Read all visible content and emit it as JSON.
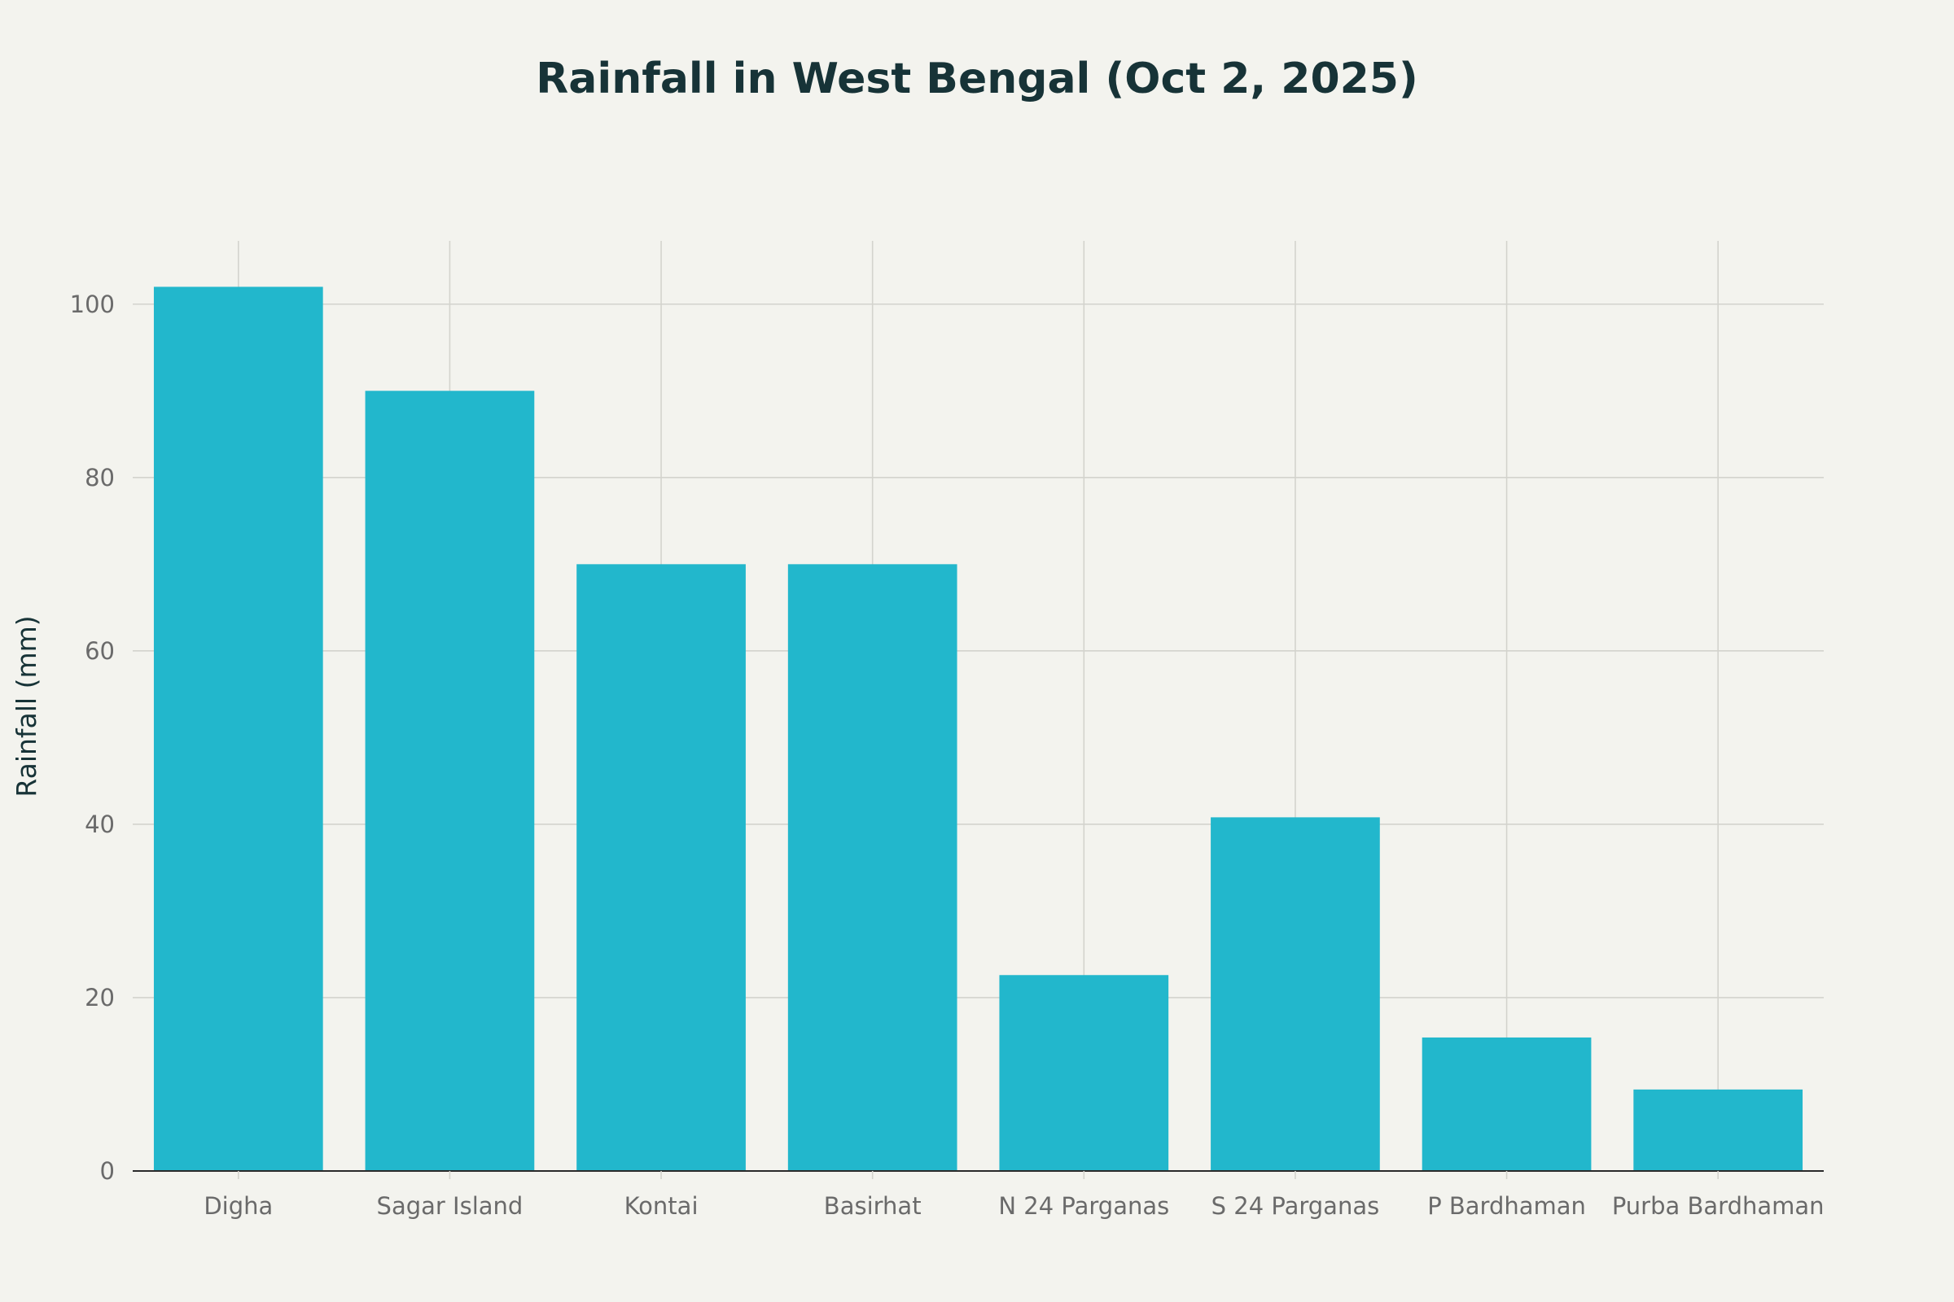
{
  "chart_data": {
    "type": "bar",
    "title": "Rainfall in West Bengal (Oct 2, 2025)",
    "xlabel": "",
    "ylabel": "Rainfall (mm)",
    "categories": [
      "Digha",
      "Sagar Island",
      "Kontai",
      "Basirhat",
      "N 24 Parganas",
      "S 24 Parganas",
      "P Bardhaman",
      "Purba Bardhaman"
    ],
    "values": [
      102,
      90,
      70,
      70,
      22.6,
      40.8,
      15.4,
      9.4
    ],
    "ylim": [
      0,
      107.3
    ],
    "yticks": [
      0,
      20,
      40,
      60,
      80,
      100
    ],
    "grid": true,
    "legend": "none",
    "colors": {
      "bar": "#22b7cc",
      "background": "#f3f3ee",
      "title": "#173337",
      "grid": "#d3d3cd"
    }
  }
}
